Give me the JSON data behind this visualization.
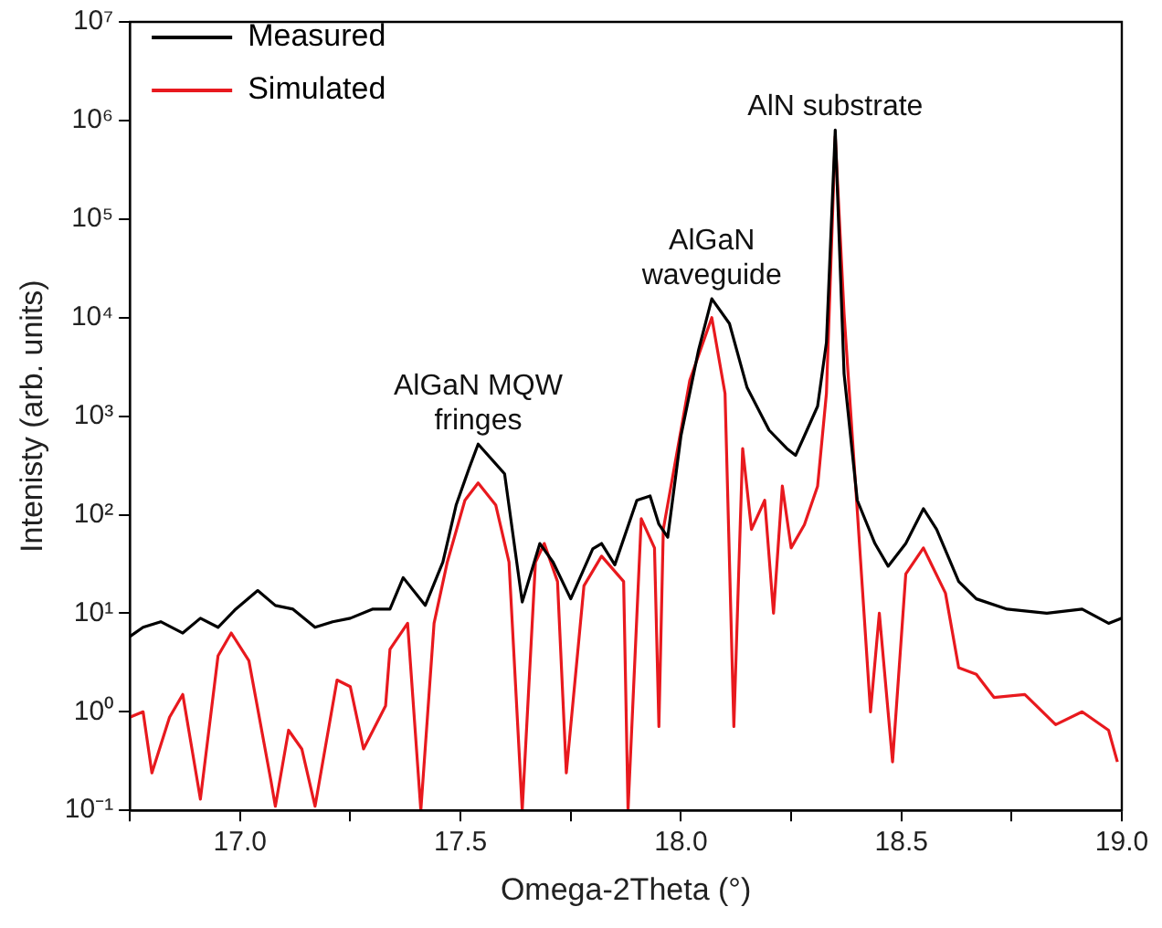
{
  "chart_data": {
    "type": "line",
    "xlabel": "Omega-2Theta (°)",
    "ylabel": "Intenisty (arb. units)",
    "log": "y",
    "grid": false,
    "legend": "top left",
    "marker": "none",
    "line_style": "solid",
    "xlim": [
      16.75,
      19.0
    ],
    "xticks": [
      {
        "value": 16.75,
        "label": null
      },
      {
        "value": 17.0,
        "label": "17.0"
      },
      {
        "value": 17.25,
        "label": null
      },
      {
        "value": 17.5,
        "label": "17.5"
      },
      {
        "value": 17.75,
        "label": null
      },
      {
        "value": 18.0,
        "label": "18.0"
      },
      {
        "value": 18.25,
        "label": null
      },
      {
        "value": 18.5,
        "label": "18.5"
      },
      {
        "value": 18.75,
        "label": null
      },
      {
        "value": 19.0,
        "label": "19.0"
      }
    ],
    "ylim": [
      0.1,
      10000000
    ],
    "yticks": [
      {
        "value": 0.1,
        "label": "10⁻¹"
      },
      {
        "value": 1,
        "label": "10⁰"
      },
      {
        "value": 10,
        "label": "10¹"
      },
      {
        "value": 100,
        "label": "10²"
      },
      {
        "value": 1000,
        "label": "10³"
      },
      {
        "value": 10000,
        "label": "10⁴"
      },
      {
        "value": 100000,
        "label": "10⁵"
      },
      {
        "value": 1000000,
        "label": "10⁶"
      },
      {
        "value": 10000000,
        "label": "10⁷"
      }
    ],
    "annotations": [
      {
        "text": "AlGaN MQW\nfringes",
        "x": 17.54,
        "y": 520
      },
      {
        "text": "AlGaN\nwaveguide",
        "x": 18.07,
        "y": 15500
      },
      {
        "text": "AlN substrate",
        "x": 18.35,
        "y": 800000
      }
    ],
    "series": [
      {
        "name": "Measured",
        "color": "#000000",
        "x": [
          16.75,
          16.78,
          16.82,
          16.87,
          16.91,
          16.95,
          16.99,
          17.04,
          17.08,
          17.12,
          17.17,
          17.21,
          17.25,
          17.3,
          17.34,
          17.37,
          17.42,
          17.46,
          17.49,
          17.52,
          17.54,
          17.6,
          17.64,
          17.68,
          17.71,
          17.75,
          17.8,
          17.82,
          17.85,
          17.9,
          17.93,
          17.95,
          17.97,
          18.0,
          18.04,
          18.07,
          18.11,
          18.15,
          18.2,
          18.24,
          18.26,
          18.28,
          18.31,
          18.33,
          18.35,
          18.37,
          18.4,
          18.44,
          18.47,
          18.51,
          18.55,
          18.58,
          18.63,
          18.67,
          18.74,
          18.83,
          18.91,
          18.97,
          19.0
        ],
        "values": [
          5.8,
          7.2,
          8.2,
          6.3,
          8.9,
          7.2,
          11,
          17,
          12,
          11,
          7.2,
          8.2,
          8.9,
          11,
          11,
          23,
          12,
          33,
          125,
          300,
          520,
          260,
          13,
          51,
          33,
          14,
          45,
          51,
          31,
          140,
          155,
          80,
          59,
          630,
          4700,
          15500,
          8700,
          1950,
          720,
          470,
          400,
          630,
          1260,
          5600,
          800000,
          2700,
          140,
          51,
          30,
          51,
          115,
          71,
          21,
          14,
          11,
          10,
          11,
          7.9,
          8.9
        ]
      },
      {
        "name": "Simulated",
        "color": "#e8191e",
        "x": [
          16.75,
          16.78,
          16.8,
          16.84,
          16.87,
          16.91,
          16.95,
          16.98,
          17.02,
          17.07,
          17.08,
          17.11,
          17.14,
          17.17,
          17.22,
          17.25,
          17.28,
          17.33,
          17.34,
          17.38,
          17.41,
          17.44,
          17.47,
          17.51,
          17.54,
          17.58,
          17.61,
          17.64,
          17.67,
          17.69,
          17.72,
          17.74,
          17.78,
          17.82,
          17.87,
          17.88,
          17.91,
          17.94,
          17.95,
          17.96,
          18.0,
          18.02,
          18.07,
          18.1,
          18.12,
          18.14,
          18.16,
          18.19,
          18.21,
          18.23,
          18.25,
          18.28,
          18.31,
          18.33,
          18.35,
          18.37,
          18.4,
          18.43,
          18.45,
          18.48,
          18.51,
          18.55,
          18.6,
          18.63,
          18.67,
          18.71,
          18.78,
          18.85,
          18.91,
          18.97,
          18.99
        ],
        "values": [
          0.88,
          1.0,
          0.24,
          0.88,
          1.5,
          0.13,
          3.7,
          6.3,
          3.3,
          0.2,
          0.11,
          0.65,
          0.42,
          0.11,
          2.1,
          1.8,
          0.42,
          1.15,
          4.3,
          7.9,
          0.1,
          7.9,
          33,
          140,
          210,
          125,
          33,
          0.1,
          33,
          51,
          21,
          0.24,
          19,
          38,
          21,
          0.1,
          91,
          46,
          0.71,
          71,
          720,
          2300,
          10000,
          1700,
          0.71,
          470,
          71,
          140,
          10,
          195,
          46,
          79,
          195,
          1700,
          690000,
          11000,
          110,
          1.0,
          10,
          0.31,
          25,
          46,
          16,
          2.8,
          2.4,
          1.4,
          1.5,
          0.74,
          1.0,
          0.65,
          0.31
        ]
      }
    ]
  }
}
